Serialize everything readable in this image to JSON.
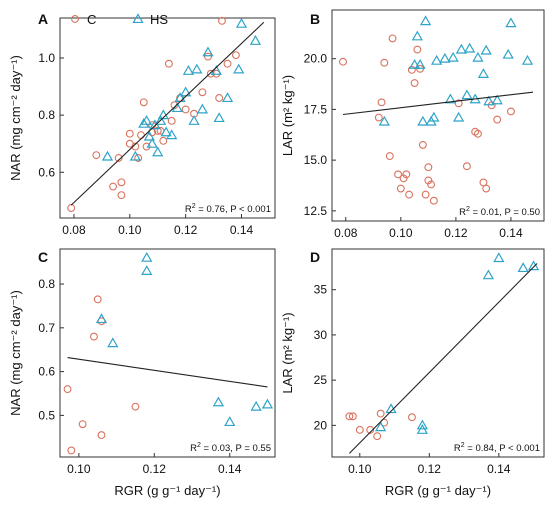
{
  "legend": {
    "items": [
      {
        "label": "C",
        "key": "C"
      },
      {
        "label": "HS",
        "key": "HS"
      }
    ]
  },
  "colors": {
    "C": "#d9735e",
    "HS": "#2fa4c8",
    "fit": "#222222"
  },
  "chart_data": [
    {
      "panel": "A",
      "type": "scatter",
      "xlabel": "",
      "ylabel": "NAR (mg cm⁻² day⁻¹)",
      "xlim": [
        0.075,
        0.152
      ],
      "ylim": [
        0.44,
        1.14
      ],
      "xticks": [
        0.08,
        0.1,
        0.12,
        0.14
      ],
      "yticks": [
        0.6,
        0.8,
        1.0
      ],
      "xtick_labels": [
        "0.08",
        "0.10",
        "0.12",
        "0.14"
      ],
      "ytick_labels": [
        "0.6",
        "0.8",
        "1.0"
      ],
      "stat_r2": "2",
      "stat_text": " = 0.76, P < 0.001",
      "fit": {
        "x": [
          0.079,
          0.148
        ],
        "y": [
          0.485,
          1.125
        ]
      },
      "series": [
        {
          "name": "C",
          "marker": "circle",
          "points": [
            [
              0.079,
              0.475
            ],
            [
              0.088,
              0.66
            ],
            [
              0.094,
              0.55
            ],
            [
              0.097,
              0.52
            ],
            [
              0.097,
              0.565
            ],
            [
              0.096,
              0.65
            ],
            [
              0.1,
              0.7
            ],
            [
              0.1,
              0.735
            ],
            [
              0.102,
              0.69
            ],
            [
              0.103,
              0.65
            ],
            [
              0.104,
              0.73
            ],
            [
              0.105,
              0.845
            ],
            [
              0.106,
              0.69
            ],
            [
              0.108,
              0.74
            ],
            [
              0.108,
              0.765
            ],
            [
              0.11,
              0.745
            ],
            [
              0.111,
              0.745
            ],
            [
              0.112,
              0.71
            ],
            [
              0.114,
              0.98
            ],
            [
              0.115,
              0.78
            ],
            [
              0.116,
              0.835
            ],
            [
              0.118,
              0.86
            ],
            [
              0.12,
              0.82
            ],
            [
              0.123,
              0.805
            ],
            [
              0.126,
              0.88
            ],
            [
              0.128,
              1.005
            ],
            [
              0.129,
              0.945
            ],
            [
              0.131,
              0.945
            ],
            [
              0.132,
              0.86
            ],
            [
              0.133,
              1.13
            ],
            [
              0.135,
              0.98
            ],
            [
              0.138,
              1.01
            ]
          ]
        },
        {
          "name": "HS",
          "marker": "triangle",
          "points": [
            [
              0.092,
              0.655
            ],
            [
              0.102,
              0.655
            ],
            [
              0.105,
              0.77
            ],
            [
              0.106,
              0.78
            ],
            [
              0.107,
              0.725
            ],
            [
              0.108,
              0.7
            ],
            [
              0.109,
              0.765
            ],
            [
              0.11,
              0.67
            ],
            [
              0.111,
              0.78
            ],
            [
              0.112,
              0.8
            ],
            [
              0.113,
              0.74
            ],
            [
              0.115,
              0.73
            ],
            [
              0.117,
              0.825
            ],
            [
              0.118,
              0.86
            ],
            [
              0.12,
              0.88
            ],
            [
              0.121,
              0.955
            ],
            [
              0.123,
              0.78
            ],
            [
              0.124,
              0.96
            ],
            [
              0.126,
              0.82
            ],
            [
              0.128,
              1.02
            ],
            [
              0.131,
              0.955
            ],
            [
              0.132,
              0.79
            ],
            [
              0.135,
              0.86
            ],
            [
              0.139,
              0.96
            ],
            [
              0.14,
              1.12
            ],
            [
              0.145,
              1.06
            ]
          ]
        }
      ]
    },
    {
      "panel": "B",
      "type": "scatter",
      "xlabel": "",
      "ylabel": "LAR (m² kg⁻¹)",
      "xlim": [
        0.075,
        0.152
      ],
      "ylim": [
        12.0,
        22.4
      ],
      "xticks": [
        0.08,
        0.1,
        0.12,
        0.14
      ],
      "yticks": [
        12.5,
        15.0,
        17.5,
        20.0
      ],
      "xtick_labels": [
        "0.08",
        "0.10",
        "0.12",
        "0.14"
      ],
      "ytick_labels": [
        "12.5",
        "15.0",
        "17.5",
        "20.0"
      ],
      "stat_r2": "2",
      "stat_text": " = 0.01, P = 0.50",
      "fit": {
        "x": [
          0.079,
          0.148
        ],
        "y": [
          17.25,
          18.35
        ]
      },
      "series": [
        {
          "name": "C",
          "marker": "circle",
          "points": [
            [
              0.079,
              19.85
            ],
            [
              0.092,
              17.1
            ],
            [
              0.093,
              17.85
            ],
            [
              0.094,
              19.8
            ],
            [
              0.096,
              15.2
            ],
            [
              0.097,
              21.0
            ],
            [
              0.099,
              14.3
            ],
            [
              0.1,
              13.6
            ],
            [
              0.101,
              14.1
            ],
            [
              0.102,
              14.3
            ],
            [
              0.103,
              13.3
            ],
            [
              0.104,
              19.45
            ],
            [
              0.105,
              18.8
            ],
            [
              0.106,
              20.45
            ],
            [
              0.107,
              19.5
            ],
            [
              0.108,
              15.75
            ],
            [
              0.109,
              13.3
            ],
            [
              0.11,
              14.65
            ],
            [
              0.11,
              14.0
            ],
            [
              0.111,
              13.8
            ],
            [
              0.112,
              13.0
            ],
            [
              0.121,
              17.8
            ],
            [
              0.124,
              14.7
            ],
            [
              0.127,
              16.4
            ],
            [
              0.128,
              16.3
            ],
            [
              0.13,
              13.9
            ],
            [
              0.131,
              13.6
            ],
            [
              0.133,
              17.7
            ],
            [
              0.135,
              17.0
            ],
            [
              0.14,
              17.4
            ]
          ]
        },
        {
          "name": "HS",
          "marker": "triangle",
          "points": [
            [
              0.094,
              16.9
            ],
            [
              0.105,
              19.7
            ],
            [
              0.106,
              21.1
            ],
            [
              0.107,
              19.7
            ],
            [
              0.108,
              16.9
            ],
            [
              0.109,
              21.85
            ],
            [
              0.111,
              16.9
            ],
            [
              0.112,
              17.1
            ],
            [
              0.113,
              19.9
            ],
            [
              0.116,
              20.0
            ],
            [
              0.118,
              18.0
            ],
            [
              0.119,
              20.05
            ],
            [
              0.121,
              17.1
            ],
            [
              0.122,
              20.45
            ],
            [
              0.124,
              18.2
            ],
            [
              0.125,
              20.5
            ],
            [
              0.127,
              18.0
            ],
            [
              0.128,
              20.05
            ],
            [
              0.13,
              19.25
            ],
            [
              0.131,
              20.4
            ],
            [
              0.132,
              17.9
            ],
            [
              0.135,
              17.95
            ],
            [
              0.139,
              20.2
            ],
            [
              0.14,
              21.75
            ],
            [
              0.146,
              19.9
            ]
          ]
        }
      ]
    },
    {
      "panel": "C",
      "type": "scatter",
      "xlabel": "RGR (g g⁻¹ day⁻¹)",
      "ylabel": "NAR (mg cm⁻² day⁻¹)",
      "xlim": [
        0.095,
        0.152
      ],
      "ylim": [
        0.405,
        0.88
      ],
      "xticks": [
        0.1,
        0.12,
        0.14
      ],
      "yticks": [
        0.5,
        0.6,
        0.7,
        0.8
      ],
      "xtick_labels": [
        "0.10",
        "0.12",
        "0.14"
      ],
      "ytick_labels": [
        "0.5",
        "0.6",
        "0.7",
        "0.8"
      ],
      "stat_r2": "2",
      "stat_text": " = 0.03, P = 0.55",
      "fit": {
        "x": [
          0.097,
          0.15
        ],
        "y": [
          0.632,
          0.565
        ]
      },
      "series": [
        {
          "name": "C",
          "marker": "circle",
          "points": [
            [
              0.097,
              0.56
            ],
            [
              0.098,
              0.42
            ],
            [
              0.101,
              0.48
            ],
            [
              0.104,
              0.68
            ],
            [
              0.105,
              0.765
            ],
            [
              0.106,
              0.455
            ],
            [
              0.106,
              0.715
            ],
            [
              0.115,
              0.52
            ]
          ]
        },
        {
          "name": "HS",
          "marker": "triangle",
          "points": [
            [
              0.106,
              0.72
            ],
            [
              0.109,
              0.665
            ],
            [
              0.118,
              0.86
            ],
            [
              0.118,
              0.83
            ],
            [
              0.137,
              0.53
            ],
            [
              0.14,
              0.485
            ],
            [
              0.147,
              0.52
            ],
            [
              0.15,
              0.525
            ]
          ]
        }
      ]
    },
    {
      "panel": "D",
      "type": "scatter",
      "xlabel": "RGR (g g⁻¹ day⁻¹)",
      "ylabel": "LAR (m² kg⁻¹)",
      "xlim": [
        0.092,
        0.153
      ],
      "ylim": [
        16.5,
        39.5
      ],
      "xticks": [
        0.1,
        0.12,
        0.14
      ],
      "yticks": [
        20,
        25,
        30,
        35
      ],
      "xtick_labels": [
        "0.10",
        "0.12",
        "0.14"
      ],
      "ytick_labels": [
        "20",
        "25",
        "30",
        "35"
      ],
      "stat_r2": "2",
      "stat_text": " = 0.84, P < 0.001",
      "fit": {
        "x": [
          0.097,
          0.151
        ],
        "y": [
          16.9,
          37.9
        ]
      },
      "series": [
        {
          "name": "C",
          "marker": "circle",
          "points": [
            [
              0.097,
              21.0
            ],
            [
              0.098,
              21.0
            ],
            [
              0.1,
              19.5
            ],
            [
              0.103,
              19.5
            ],
            [
              0.105,
              18.8
            ],
            [
              0.106,
              21.3
            ],
            [
              0.107,
              20.3
            ],
            [
              0.115,
              20.9
            ]
          ]
        },
        {
          "name": "HS",
          "marker": "triangle",
          "points": [
            [
              0.106,
              19.8
            ],
            [
              0.109,
              21.8
            ],
            [
              0.118,
              20.0
            ],
            [
              0.118,
              19.5
            ],
            [
              0.137,
              36.6
            ],
            [
              0.14,
              38.5
            ],
            [
              0.147,
              37.4
            ],
            [
              0.15,
              37.6
            ]
          ]
        }
      ]
    }
  ]
}
